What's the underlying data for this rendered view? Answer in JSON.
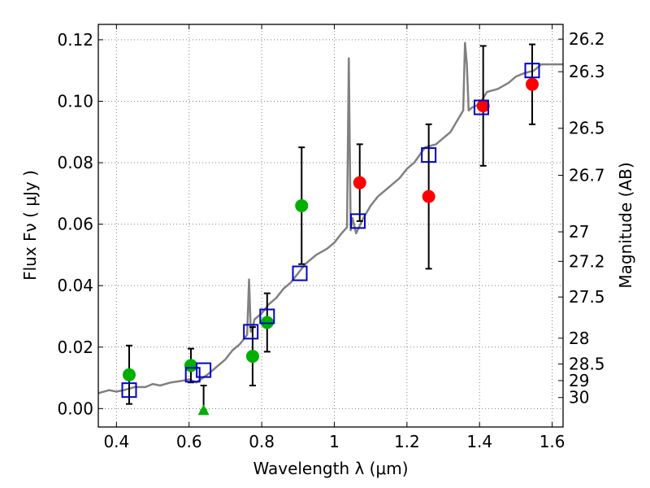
{
  "chart_data": {
    "type": "scatter",
    "xlabel": "Wavelength  λ (μm)",
    "ylabel": "Flux  Fν  ( μJy )",
    "y2label": "Magnitude (AB)",
    "xlim": [
      0.35,
      1.63
    ],
    "ylim": [
      -0.006,
      0.125
    ],
    "xticks": [
      0.4,
      0.6,
      0.8,
      1.0,
      1.2,
      1.4,
      1.6
    ],
    "xtick_labels": [
      "0.4",
      "0.6",
      "0.8",
      "1",
      "1.2",
      "1.4",
      "1.6"
    ],
    "yticks": [
      0.0,
      0.02,
      0.04,
      0.06,
      0.08,
      0.1,
      0.12
    ],
    "ytick_labels": [
      "0.00",
      "0.02",
      "0.04",
      "0.06",
      "0.08",
      "0.10",
      "0.12"
    ],
    "mag_ticks": [
      {
        "label": "26.2",
        "flux": 0.1202
      },
      {
        "label": "26.3",
        "flux": 0.1096
      },
      {
        "label": "26.5",
        "flux": 0.0912
      },
      {
        "label": "26.7",
        "flux": 0.0759
      },
      {
        "label": "27",
        "flux": 0.0575
      },
      {
        "label": "27.2",
        "flux": 0.0479
      },
      {
        "label": "27.5",
        "flux": 0.0363
      },
      {
        "label": "28",
        "flux": 0.0229
      },
      {
        "label": "28.5",
        "flux": 0.0145
      },
      {
        "label": "29",
        "flux": 0.0091
      },
      {
        "label": "30",
        "flux": 0.0036
      }
    ],
    "grid": true,
    "colors": {
      "model": "#808080",
      "green": "#00b000",
      "red": "#ff0000",
      "blue": "#0000cc",
      "errorbar": "#000000",
      "grid": "#808080"
    },
    "series": [
      {
        "marker": "line",
        "color": "#808080",
        "x": [
          0.35,
          0.38,
          0.4,
          0.42,
          0.45,
          0.48,
          0.5,
          0.52,
          0.55,
          0.58,
          0.6,
          0.62,
          0.65,
          0.68,
          0.7,
          0.72,
          0.74,
          0.76,
          0.765,
          0.77,
          0.775,
          0.78,
          0.8,
          0.82,
          0.84,
          0.86,
          0.88,
          0.9,
          0.92,
          0.95,
          0.98,
          1.0,
          1.02,
          1.035,
          1.04,
          1.045,
          1.05,
          1.06,
          1.08,
          1.1,
          1.12,
          1.15,
          1.18,
          1.2,
          1.22,
          1.25,
          1.28,
          1.3,
          1.32,
          1.34,
          1.355,
          1.36,
          1.365,
          1.37,
          1.38,
          1.4,
          1.42,
          1.45,
          1.48,
          1.5,
          1.52,
          1.55,
          1.57,
          1.6,
          1.63
        ],
        "y": [
          0.005,
          0.006,
          0.0055,
          0.006,
          0.007,
          0.007,
          0.008,
          0.0075,
          0.0085,
          0.009,
          0.0095,
          0.0085,
          0.011,
          0.014,
          0.016,
          0.019,
          0.021,
          0.024,
          0.042,
          0.025,
          0.026,
          0.029,
          0.031,
          0.034,
          0.036,
          0.039,
          0.041,
          0.044,
          0.047,
          0.05,
          0.052,
          0.054,
          0.057,
          0.059,
          0.114,
          0.058,
          0.062,
          0.057,
          0.062,
          0.066,
          0.069,
          0.072,
          0.075,
          0.078,
          0.08,
          0.085,
          0.086,
          0.088,
          0.09,
          0.094,
          0.097,
          0.119,
          0.112,
          0.097,
          0.098,
          0.099,
          0.103,
          0.104,
          0.106,
          0.108,
          0.109,
          0.11,
          0.112,
          0.112,
          0.112
        ]
      },
      {
        "marker": "circle",
        "color": "#00b000",
        "points": [
          {
            "x": 0.435,
            "y": 0.011,
            "err": 0.0095
          },
          {
            "x": 0.605,
            "y": 0.014,
            "err": 0.0055
          },
          {
            "x": 0.775,
            "y": 0.017,
            "err": 0.0095
          },
          {
            "x": 0.815,
            "y": 0.028,
            "err": 0.0095
          },
          {
            "x": 0.91,
            "y": 0.066,
            "err": 0.019
          }
        ]
      },
      {
        "marker": "triangle",
        "color": "#00b000",
        "points": [
          {
            "x": 0.64,
            "y": -0.0005,
            "err_up": 0.008
          }
        ]
      },
      {
        "marker": "circle",
        "color": "#ff0000",
        "points": [
          {
            "x": 1.07,
            "y": 0.0735,
            "err": 0.0125
          },
          {
            "x": 1.26,
            "y": 0.069,
            "err": 0.0235
          },
          {
            "x": 1.41,
            "y": 0.0985,
            "err": 0.0195
          },
          {
            "x": 1.545,
            "y": 0.1055,
            "err": 0.013
          }
        ]
      },
      {
        "marker": "square",
        "color": "#0000cc",
        "points": [
          {
            "x": 0.435,
            "y": 0.006
          },
          {
            "x": 0.61,
            "y": 0.011
          },
          {
            "x": 0.64,
            "y": 0.0125
          },
          {
            "x": 0.77,
            "y": 0.025
          },
          {
            "x": 0.815,
            "y": 0.03
          },
          {
            "x": 0.905,
            "y": 0.044
          },
          {
            "x": 1.065,
            "y": 0.061
          },
          {
            "x": 1.26,
            "y": 0.0825
          },
          {
            "x": 1.405,
            "y": 0.098
          },
          {
            "x": 1.545,
            "y": 0.11
          }
        ]
      }
    ]
  }
}
